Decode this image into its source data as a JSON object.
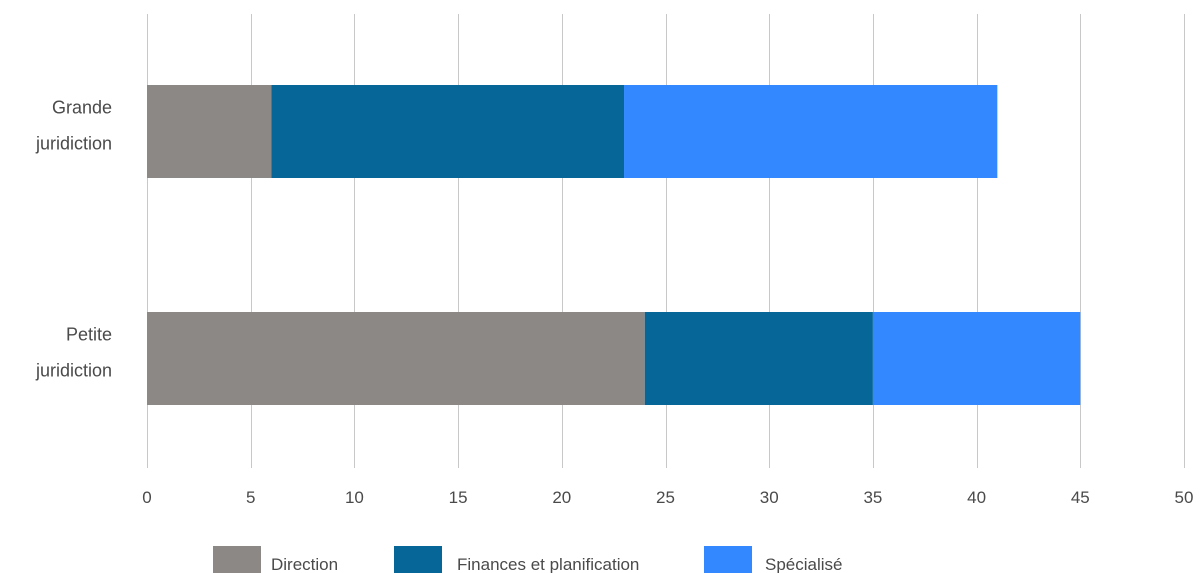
{
  "chart_data": {
    "type": "bar",
    "orientation": "horizontal",
    "stacked": true,
    "categories": [
      [
        "Grande",
        "juridiction"
      ],
      [
        "Petite",
        "juridiction"
      ]
    ],
    "series": [
      {
        "name": "Direction",
        "values": [
          6,
          24
        ],
        "color": "#8c8886"
      },
      {
        "name": "Finances et planification",
        "values": [
          17,
          11
        ],
        "color": "#066698"
      },
      {
        "name": "Spécialisé",
        "values": [
          18,
          10
        ],
        "color": "#3388ff"
      }
    ],
    "x_ticks": [
      "0",
      "5",
      "10",
      "15",
      "20",
      "25",
      "30",
      "35",
      "40",
      "45",
      "50"
    ],
    "xlim": [
      0,
      50
    ],
    "grid": "vertical",
    "legend_position": "bottom"
  }
}
